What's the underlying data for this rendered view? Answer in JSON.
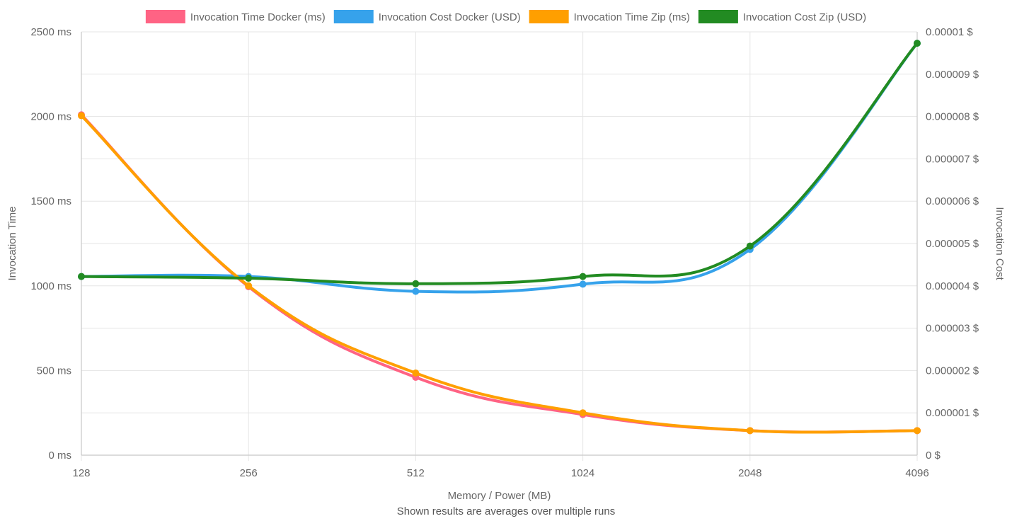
{
  "chart_data": {
    "type": "line",
    "x": [
      "128",
      "256",
      "512",
      "1024",
      "2048",
      "4096"
    ],
    "xlabel": "Memory / Power (MB)",
    "ylabel_left": "Invocation Time",
    "ylabel_right": "Invocation Cost",
    "ylim_left": [
      0,
      2500
    ],
    "ylim_right": [
      0,
      1e-05
    ],
    "yticks_left": [
      "0 ms",
      "500 ms",
      "1000 ms",
      "1500 ms",
      "2000 ms",
      "2500 ms"
    ],
    "yticks_right": [
      "0 $",
      "0.000001 $",
      "0.000002 $",
      "0.000003 $",
      "0.000004 $",
      "0.000005 $",
      "0.000006 $",
      "0.000007 $",
      "0.000008 $",
      "0.000009 $",
      "0.00001 $"
    ],
    "grid": true,
    "legend_position": "top",
    "footnote": "Shown results are averages over multiple runs",
    "series": [
      {
        "name": "Invocation Time Docker (ms)",
        "axis": "left",
        "color": "#ff6384",
        "values": [
          2010,
          995,
          460,
          240,
          145,
          145
        ]
      },
      {
        "name": "Invocation Cost Docker (USD)",
        "axis": "right",
        "color": "#36a2eb",
        "values": [
          4.22e-06,
          4.22e-06,
          3.87e-06,
          4.04e-06,
          4.86e-06,
          9.73e-06
        ]
      },
      {
        "name": "Invocation Time Zip (ms)",
        "axis": "left",
        "color": "#ff9f00",
        "values": [
          2005,
          1000,
          485,
          250,
          145,
          145
        ]
      },
      {
        "name": "Invocation Cost Zip (USD)",
        "axis": "right",
        "color": "#228b22",
        "values": [
          4.22e-06,
          4.18e-06,
          4.05e-06,
          4.22e-06,
          4.94e-06,
          9.73e-06
        ]
      }
    ]
  }
}
